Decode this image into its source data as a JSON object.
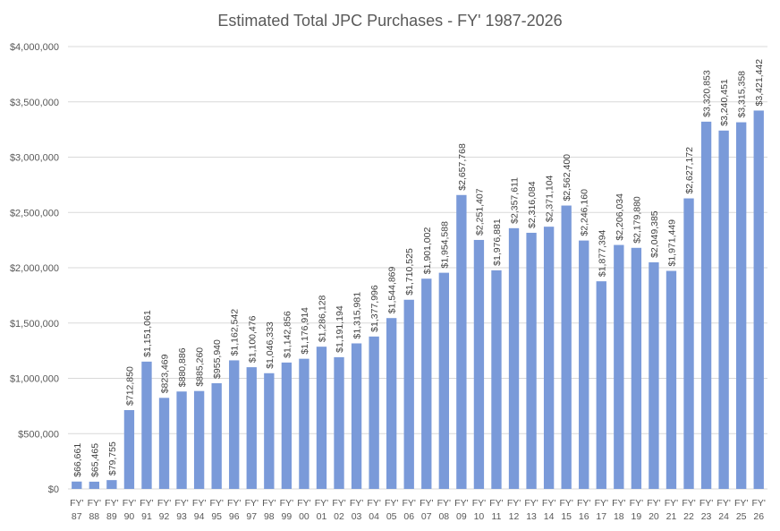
{
  "chart_data": {
    "type": "bar",
    "title": "Estimated Total JPC Purchases - FY' 1987-2026",
    "xlabel": "",
    "ylabel": "",
    "ylim": [
      0,
      4000000
    ],
    "yticks": [
      "$0",
      "$500,000",
      "$1,000,000",
      "$1,500,000",
      "$2,000,000",
      "$2,500,000",
      "$3,000,000",
      "$3,500,000",
      "$4,000,000"
    ],
    "ytick_values": [
      0,
      500000,
      1000000,
      1500000,
      2000000,
      2500000,
      3000000,
      3500000,
      4000000
    ],
    "grid": true,
    "bar_color": "#7a9ad9",
    "category_prefix": "FY'",
    "categories": [
      "87",
      "88",
      "89",
      "90",
      "91",
      "92",
      "93",
      "94",
      "95",
      "96",
      "97",
      "98",
      "99",
      "00",
      "01",
      "02",
      "03",
      "04",
      "05",
      "06",
      "07",
      "08",
      "09",
      "10",
      "11",
      "12",
      "13",
      "14",
      "15",
      "16",
      "17",
      "18",
      "19",
      "20",
      "21",
      "22",
      "23",
      "24",
      "25",
      "26"
    ],
    "values": [
      66661,
      65465,
      79755,
      712850,
      1151061,
      823469,
      880886,
      885260,
      955940,
      1162542,
      1100476,
      1046333,
      1142856,
      1176914,
      1286128,
      1191194,
      1315981,
      1377996,
      1544869,
      1710525,
      1901002,
      1954588,
      2657768,
      2251407,
      1976881,
      2357611,
      2316084,
      2371104,
      2562400,
      2246160,
      1877394,
      2206034,
      2179880,
      2049385,
      1971449,
      2627172,
      3320853,
      3240451,
      3315358,
      3421442
    ],
    "data_labels": [
      "$66,661",
      "$65,465",
      "$79,755",
      "$712,850",
      "$1,151,061",
      "$823,469",
      "$880,886",
      "$885,260",
      "$955,940",
      "$1,162,542",
      "$1,100,476",
      "$1,046,333",
      "$1,142,856",
      "$1,176,914",
      "$1,286,128",
      "$1,191,194",
      "$1,315,981",
      "$1,377,996",
      "$1,544,869",
      "$1,710,525",
      "$1,901,002",
      "$1,954,588",
      "$2,657,768",
      "$2,251,407",
      "$1,976,881",
      "$2,357,611",
      "$2,316,084",
      "$2,371,104",
      "$2,562,400",
      "$2,246,160",
      "$1,877,394",
      "$2,206,034",
      "$2,179,880",
      "$2,049,385",
      "$1,971,449",
      "$2,627,172",
      "$3,320,853",
      "$3,240,451",
      "$3,315,358",
      "$3,421,442"
    ]
  }
}
